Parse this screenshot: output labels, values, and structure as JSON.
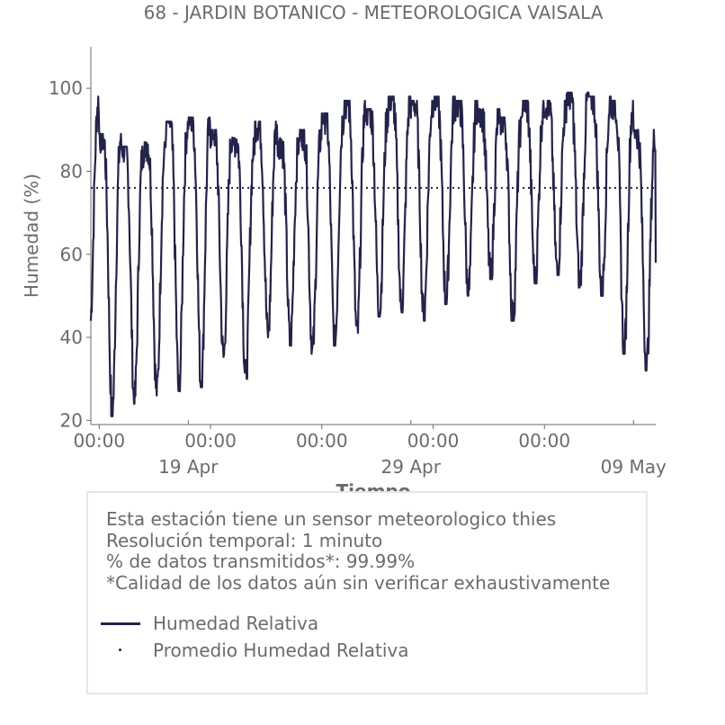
{
  "chart_data": {
    "type": "line",
    "title": "68 - JARDIN BOTANICO - METEOROLOGICA VAISALA",
    "xlabel": "Tiempo",
    "ylabel": "Humedad (%)",
    "ylim": [
      19,
      110
    ],
    "y_ticks": [
      20,
      40,
      60,
      80,
      100
    ],
    "xlim": [
      "2023-04-14 15:00",
      "2023-05-10 00:00"
    ],
    "x_major_ticks": [
      {
        "date": "2023-04-19",
        "label": "19 Apr"
      },
      {
        "date": "2023-04-29",
        "label": "29 Apr"
      },
      {
        "date": "2023-05-09",
        "label": "09 May"
      }
    ],
    "x_minor_ticks": [
      {
        "date": "2023-04-15 00:00",
        "label": "00:00"
      },
      {
        "date": "2023-04-20 00:00",
        "label": "00:00"
      },
      {
        "date": "2023-04-25 00:00",
        "label": "00:00"
      },
      {
        "date": "2023-04-30 00:00",
        "label": "00:00"
      },
      {
        "date": "2023-05-05 00:00",
        "label": "00:00"
      }
    ],
    "series": [
      {
        "name": "Humedad Relativa",
        "color": "#23234a",
        "style": "solid",
        "daily_max": [
          98,
          89,
          86,
          87,
          92,
          93,
          90,
          88,
          92,
          88,
          90,
          94,
          97,
          95,
          98,
          97,
          98,
          97,
          95,
          93,
          97,
          97,
          99,
          98,
          97,
          90
        ],
        "daily_min": [
          42,
          21,
          24,
          26,
          27,
          28,
          35,
          30,
          40,
          38,
          36,
          38,
          40,
          45,
          46,
          44,
          48,
          50,
          54,
          44,
          53,
          55,
          52,
          50,
          36,
          32
        ],
        "last_value": 58
      },
      {
        "name": "Promedio Humedad Relativa",
        "color": "#23234a",
        "style": "dotted",
        "value": 76
      }
    ],
    "grid": false
  },
  "legend": {
    "notes": [
      "Esta estación tiene un sensor meteorologico thies",
      "Resolución temporal: 1 minuto",
      "% de datos transmitidos*: 99.99%",
      "*Calidad de los datos aún sin verificar exhaustivamente"
    ],
    "items": [
      {
        "label": "Humedad Relativa",
        "marker": "line"
      },
      {
        "label": "Promedio Humedad Relativa",
        "marker": "dot"
      }
    ]
  },
  "colors": {
    "series": "#23234a",
    "text": "#6b6b6b",
    "axis": "#6b6b6b",
    "legend_border": "#e6e6e6"
  }
}
